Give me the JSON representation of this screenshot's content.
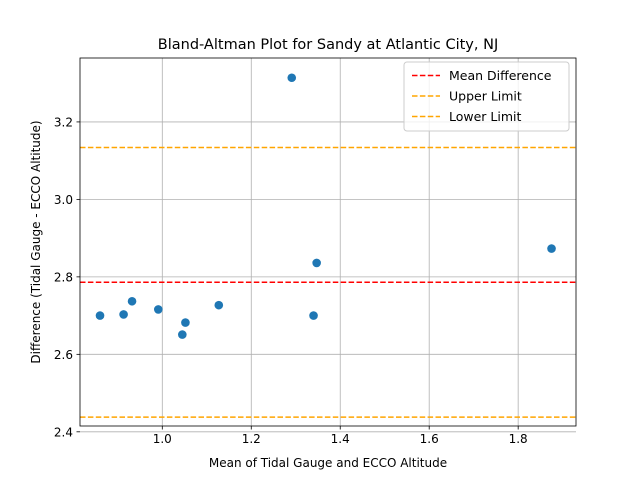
{
  "chart_data": {
    "type": "scatter",
    "title": "Bland-Altman Plot for Sandy at Atlantic City, NJ",
    "xlabel": "Mean of Tidal Gauge and ECCO Altitude",
    "ylabel": "Difference (Tidal Gauge - ECCO Altitude)",
    "xlim": [
      0.815,
      1.93
    ],
    "ylim": [
      2.415,
      3.365
    ],
    "xticks": [
      1.0,
      1.2,
      1.4,
      1.6,
      1.8
    ],
    "xtick_labels": [
      "1.0",
      "1.2",
      "1.4",
      "1.6",
      "1.8"
    ],
    "yticks": [
      2.4,
      2.6,
      2.8,
      3.0,
      3.2
    ],
    "ytick_labels": [
      "2.4",
      "2.6",
      "2.8",
      "3.0",
      "3.2"
    ],
    "grid": true,
    "legend_position": "top-right",
    "points": [
      {
        "x": 0.86,
        "y": 2.7
      },
      {
        "x": 0.913,
        "y": 2.703
      },
      {
        "x": 0.932,
        "y": 2.737
      },
      {
        "x": 0.991,
        "y": 2.716
      },
      {
        "x": 1.045,
        "y": 2.651
      },
      {
        "x": 1.052,
        "y": 2.682
      },
      {
        "x": 1.127,
        "y": 2.727
      },
      {
        "x": 1.291,
        "y": 3.314
      },
      {
        "x": 1.34,
        "y": 2.7
      },
      {
        "x": 1.347,
        "y": 2.836
      },
      {
        "x": 1.875,
        "y": 2.873
      }
    ],
    "point_color": "#1f77b4",
    "reference_lines": [
      {
        "name": "Mean Difference",
        "y": 2.786,
        "color": "#ff0000"
      },
      {
        "name": "Upper Limit",
        "y": 3.134,
        "color": "#ffa500"
      },
      {
        "name": "Lower Limit",
        "y": 2.438,
        "color": "#ffa500"
      }
    ]
  }
}
